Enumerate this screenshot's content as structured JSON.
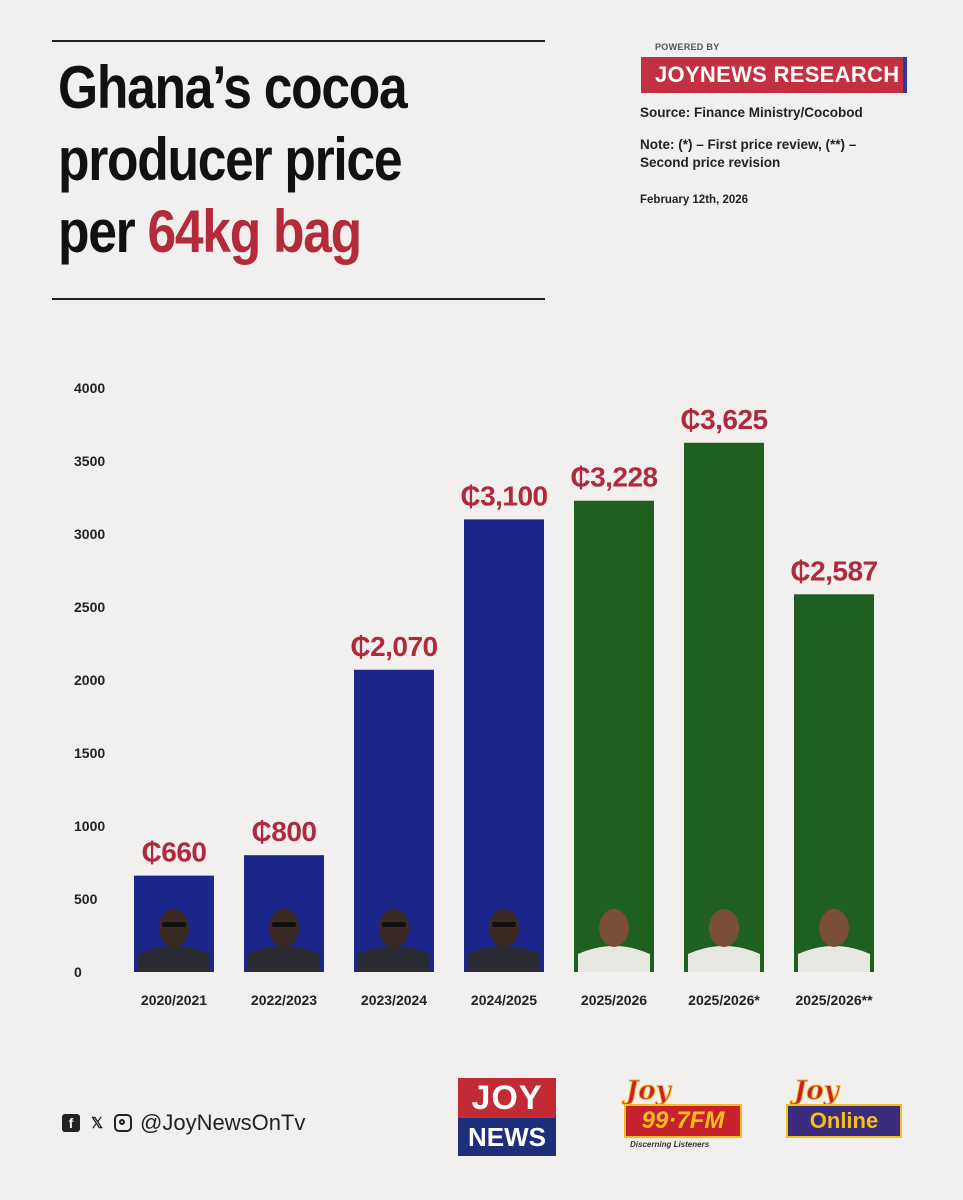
{
  "header": {
    "title_line1": "Ghana’s cocoa",
    "title_line2": "producer price",
    "title_line3_pre": "per ",
    "title_line3_accent": "64kg bag",
    "powered_by": "POWERED BY",
    "brand": "JOYNEWS RESEARCH",
    "source": "Source: Finance Ministry/Cocobod",
    "note_line1": "Note: (*) – First price review, (**) –",
    "note_line2": "Second price revision",
    "date": "February 12th, 2026"
  },
  "colors": {
    "title_accent": "#b42a3a",
    "brand_bg": "#c33040",
    "bar_blue": "#1d268a",
    "bar_green": "#1f5f1f",
    "value_label": "#b02a3c"
  },
  "chart_data": {
    "type": "bar",
    "title": "",
    "xlabel": "",
    "ylabel": "",
    "ylim": [
      0,
      4000
    ],
    "yticks": [
      0,
      500,
      1000,
      1500,
      2000,
      2500,
      3000,
      3500,
      4000
    ],
    "grid": false,
    "categories": [
      "2020/2021",
      "2022/2023",
      "2023/2024",
      "2024/2025",
      "2025/2026",
      "2025/2026*",
      "2025/2026**"
    ],
    "values": [
      660,
      800,
      2070,
      3100,
      3228,
      3625,
      2587
    ],
    "data_labels": [
      "₵660",
      "₵800",
      "₵2,070",
      "₵3,100",
      "₵3,228",
      "₵3,625",
      "₵2,587"
    ],
    "bar_colors": [
      "#1d268a",
      "#1d268a",
      "#1d268a",
      "#1d268a",
      "#1f5f1f",
      "#1f5f1f",
      "#1f5f1f"
    ],
    "bar_images": [
      "portrait",
      "portrait",
      "portrait",
      "portrait",
      "portrait",
      "portrait",
      "portrait"
    ]
  },
  "footer": {
    "handle": "@JoyNewsOnTv",
    "social_icons": [
      "facebook-icon",
      "x-icon",
      "instagram-icon"
    ],
    "logo_joynews_top": "JOY",
    "logo_joynews_bottom": "NEWS",
    "logo_fm_joy": "Joy",
    "logo_fm_freq": "99·7FM",
    "logo_fm_tag": "Discerning Listeners",
    "logo_online_joy": "Joy",
    "logo_online_word": "Online"
  }
}
